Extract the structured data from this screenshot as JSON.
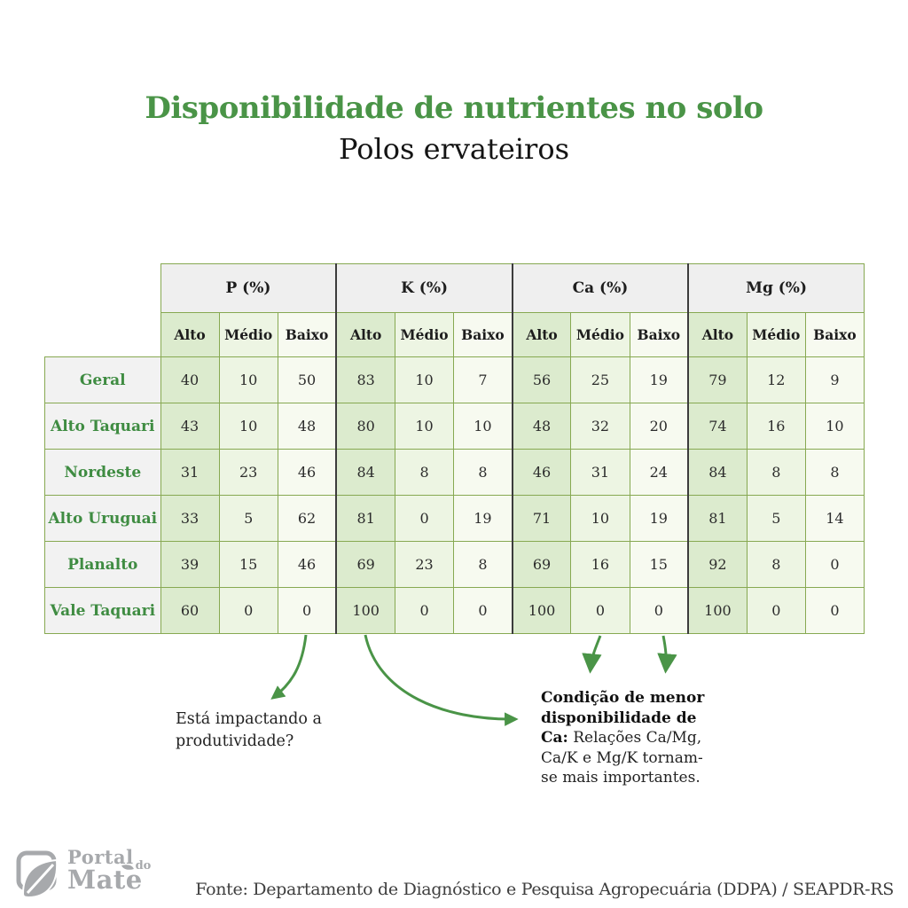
{
  "title": "Disponibilidade de nutrientes no solo",
  "subtitle": "Polos ervateiros",
  "colors": {
    "accent": "#4a9447",
    "label_green": "#3f8c42",
    "border_green": "#87a952",
    "dark_divider": "#3c3c3c",
    "cell_alto": "#dcebce",
    "cell_medio": "#edf5e3",
    "cell_baixo": "#f7faf0",
    "header_gray": "#efefef",
    "label_gray": "#f2f2f2",
    "logo_gray": "#a7a9ac"
  },
  "table": {
    "groups": [
      {
        "label": "P (%)"
      },
      {
        "label": "K (%)"
      },
      {
        "label": "Ca (%)"
      },
      {
        "label": "Mg (%)"
      }
    ],
    "sub_headers": [
      "Alto",
      "Médio",
      "Baixo"
    ],
    "rows": [
      {
        "label": "Geral",
        "values": [
          40,
          10,
          50,
          83,
          10,
          7,
          56,
          25,
          19,
          79,
          12,
          9
        ]
      },
      {
        "label": "Alto Taquari",
        "values": [
          43,
          10,
          48,
          80,
          10,
          10,
          48,
          32,
          20,
          74,
          16,
          10
        ]
      },
      {
        "label": "Nordeste",
        "values": [
          31,
          23,
          46,
          84,
          8,
          8,
          46,
          31,
          24,
          84,
          8,
          8
        ]
      },
      {
        "label": "Alto Uruguai",
        "values": [
          33,
          5,
          62,
          81,
          0,
          19,
          71,
          10,
          19,
          81,
          5,
          14
        ]
      },
      {
        "label": "Planalto",
        "values": [
          39,
          15,
          46,
          69,
          23,
          8,
          69,
          16,
          15,
          92,
          8,
          0
        ]
      },
      {
        "label": "Vale Taquari",
        "values": [
          60,
          0,
          0,
          100,
          0,
          0,
          100,
          0,
          0,
          100,
          0,
          0
        ]
      }
    ]
  },
  "annotations": {
    "left_question": "Está impactando a produtividade?",
    "right_title": "Condição de menor disponibilidade de Ca:",
    "right_body": "Relações Ca/Mg, Ca/K e Mg/K tornam-se mais importantes."
  },
  "footer": {
    "logo_line1": "Portal",
    "logo_line2": "do",
    "logo_line3": "Mate",
    "source": "Fonte: Departamento de Diagnóstico e Pesquisa Agropecuária (DDPA) / SEAPDR-RS"
  },
  "chart_data": {
    "type": "table",
    "title": "Disponibilidade de nutrientes no solo",
    "subtitle": "Polos ervateiros",
    "column_groups": [
      "P (%)",
      "K (%)",
      "Ca (%)",
      "Mg (%)"
    ],
    "sub_columns": [
      "Alto",
      "Médio",
      "Baixo"
    ],
    "row_labels": [
      "Geral",
      "Alto Taquari",
      "Nordeste",
      "Alto Uruguai",
      "Planalto",
      "Vale Taquari"
    ],
    "rows": [
      [
        40,
        10,
        50,
        83,
        10,
        7,
        56,
        25,
        19,
        79,
        12,
        9
      ],
      [
        43,
        10,
        48,
        80,
        10,
        10,
        48,
        32,
        20,
        74,
        16,
        10
      ],
      [
        31,
        23,
        46,
        84,
        8,
        8,
        46,
        31,
        24,
        84,
        8,
        8
      ],
      [
        33,
        5,
        62,
        81,
        0,
        19,
        71,
        10,
        19,
        81,
        5,
        14
      ],
      [
        39,
        15,
        46,
        69,
        23,
        8,
        69,
        16,
        15,
        92,
        8,
        0
      ],
      [
        60,
        0,
        0,
        100,
        0,
        0,
        100,
        0,
        0,
        100,
        0,
        0
      ]
    ],
    "annotations": [
      "Está impactando a produtividade?",
      "Condição de menor disponibilidade de Ca: Relações Ca/Mg, Ca/K e Mg/K tornam-se mais importantes."
    ],
    "source": "Fonte: Departamento de Diagnóstico e Pesquisa Agropecuária (DDPA) / SEAPDR-RS"
  }
}
